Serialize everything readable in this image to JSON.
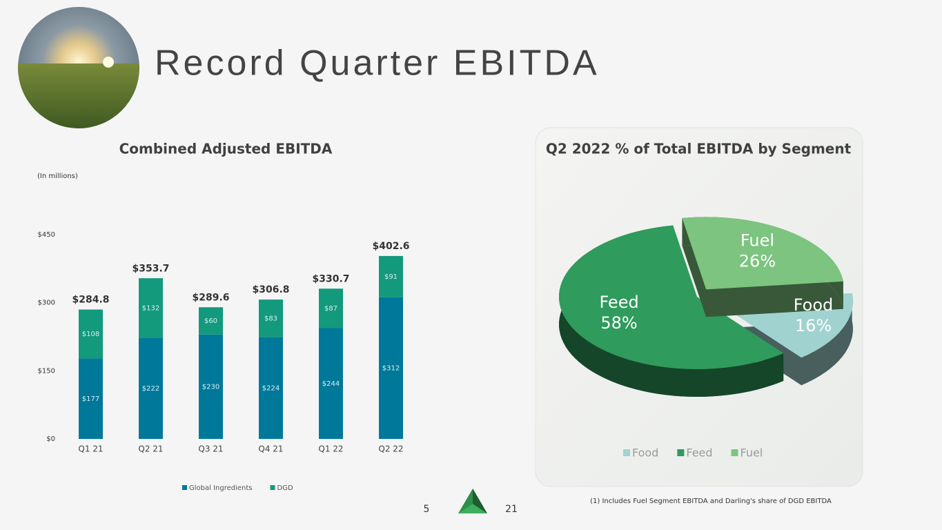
{
  "title": "Record Quarter EBITDA",
  "chart_data": [
    {
      "type": "bar",
      "stacked": true,
      "title": "Combined Adjusted EBITDA",
      "subtitle": "(In millions)",
      "categories": [
        "Q1 21",
        "Q2 21",
        "Q3 21",
        "Q4 21",
        "Q1 22",
        "Q2 22"
      ],
      "series": [
        {
          "name": "Global Ingredients",
          "color": "#00789a",
          "values": [
            177,
            222,
            230,
            224,
            244,
            312
          ],
          "value_labels": [
            "$177",
            "$222",
            "$230",
            "$224",
            "$244",
            "$312"
          ]
        },
        {
          "name": "DGD",
          "color": "#13997c",
          "values": [
            108,
            132,
            60,
            83,
            87,
            91
          ],
          "value_labels": [
            "$108",
            "$132",
            "$60",
            "$83",
            "$87",
            "$91"
          ]
        }
      ],
      "totals": [
        284.8,
        353.7,
        289.6,
        306.8,
        330.7,
        402.6
      ],
      "total_labels": [
        "$284.8",
        "$353.7",
        "$289.6",
        "$306.8",
        "$330.7",
        "$402.6"
      ],
      "ylim": [
        0,
        450
      ],
      "yticks": [
        {
          "value": 0,
          "label": "$0"
        },
        {
          "value": 150,
          "label": "$150"
        },
        {
          "value": 300,
          "label": "$300"
        },
        {
          "value": 450,
          "label": "$450"
        }
      ],
      "legend": "bottom"
    },
    {
      "type": "pie",
      "title": "Q2 2022 % of Total EBITDA by Segment",
      "categories": [
        "Food",
        "Feed",
        "Fuel"
      ],
      "values": [
        16,
        58,
        26
      ],
      "value_labels": [
        "16%",
        "58%",
        "26%"
      ],
      "colors": [
        "#a0d2d0",
        "#2f9b5c",
        "#7cc47f"
      ],
      "legend": "bottom"
    }
  ],
  "footnote": "(1) Includes Fuel Segment EBITDA and Darling's share of DGD EBITDA",
  "page_numbers": [
    "5",
    "21"
  ]
}
